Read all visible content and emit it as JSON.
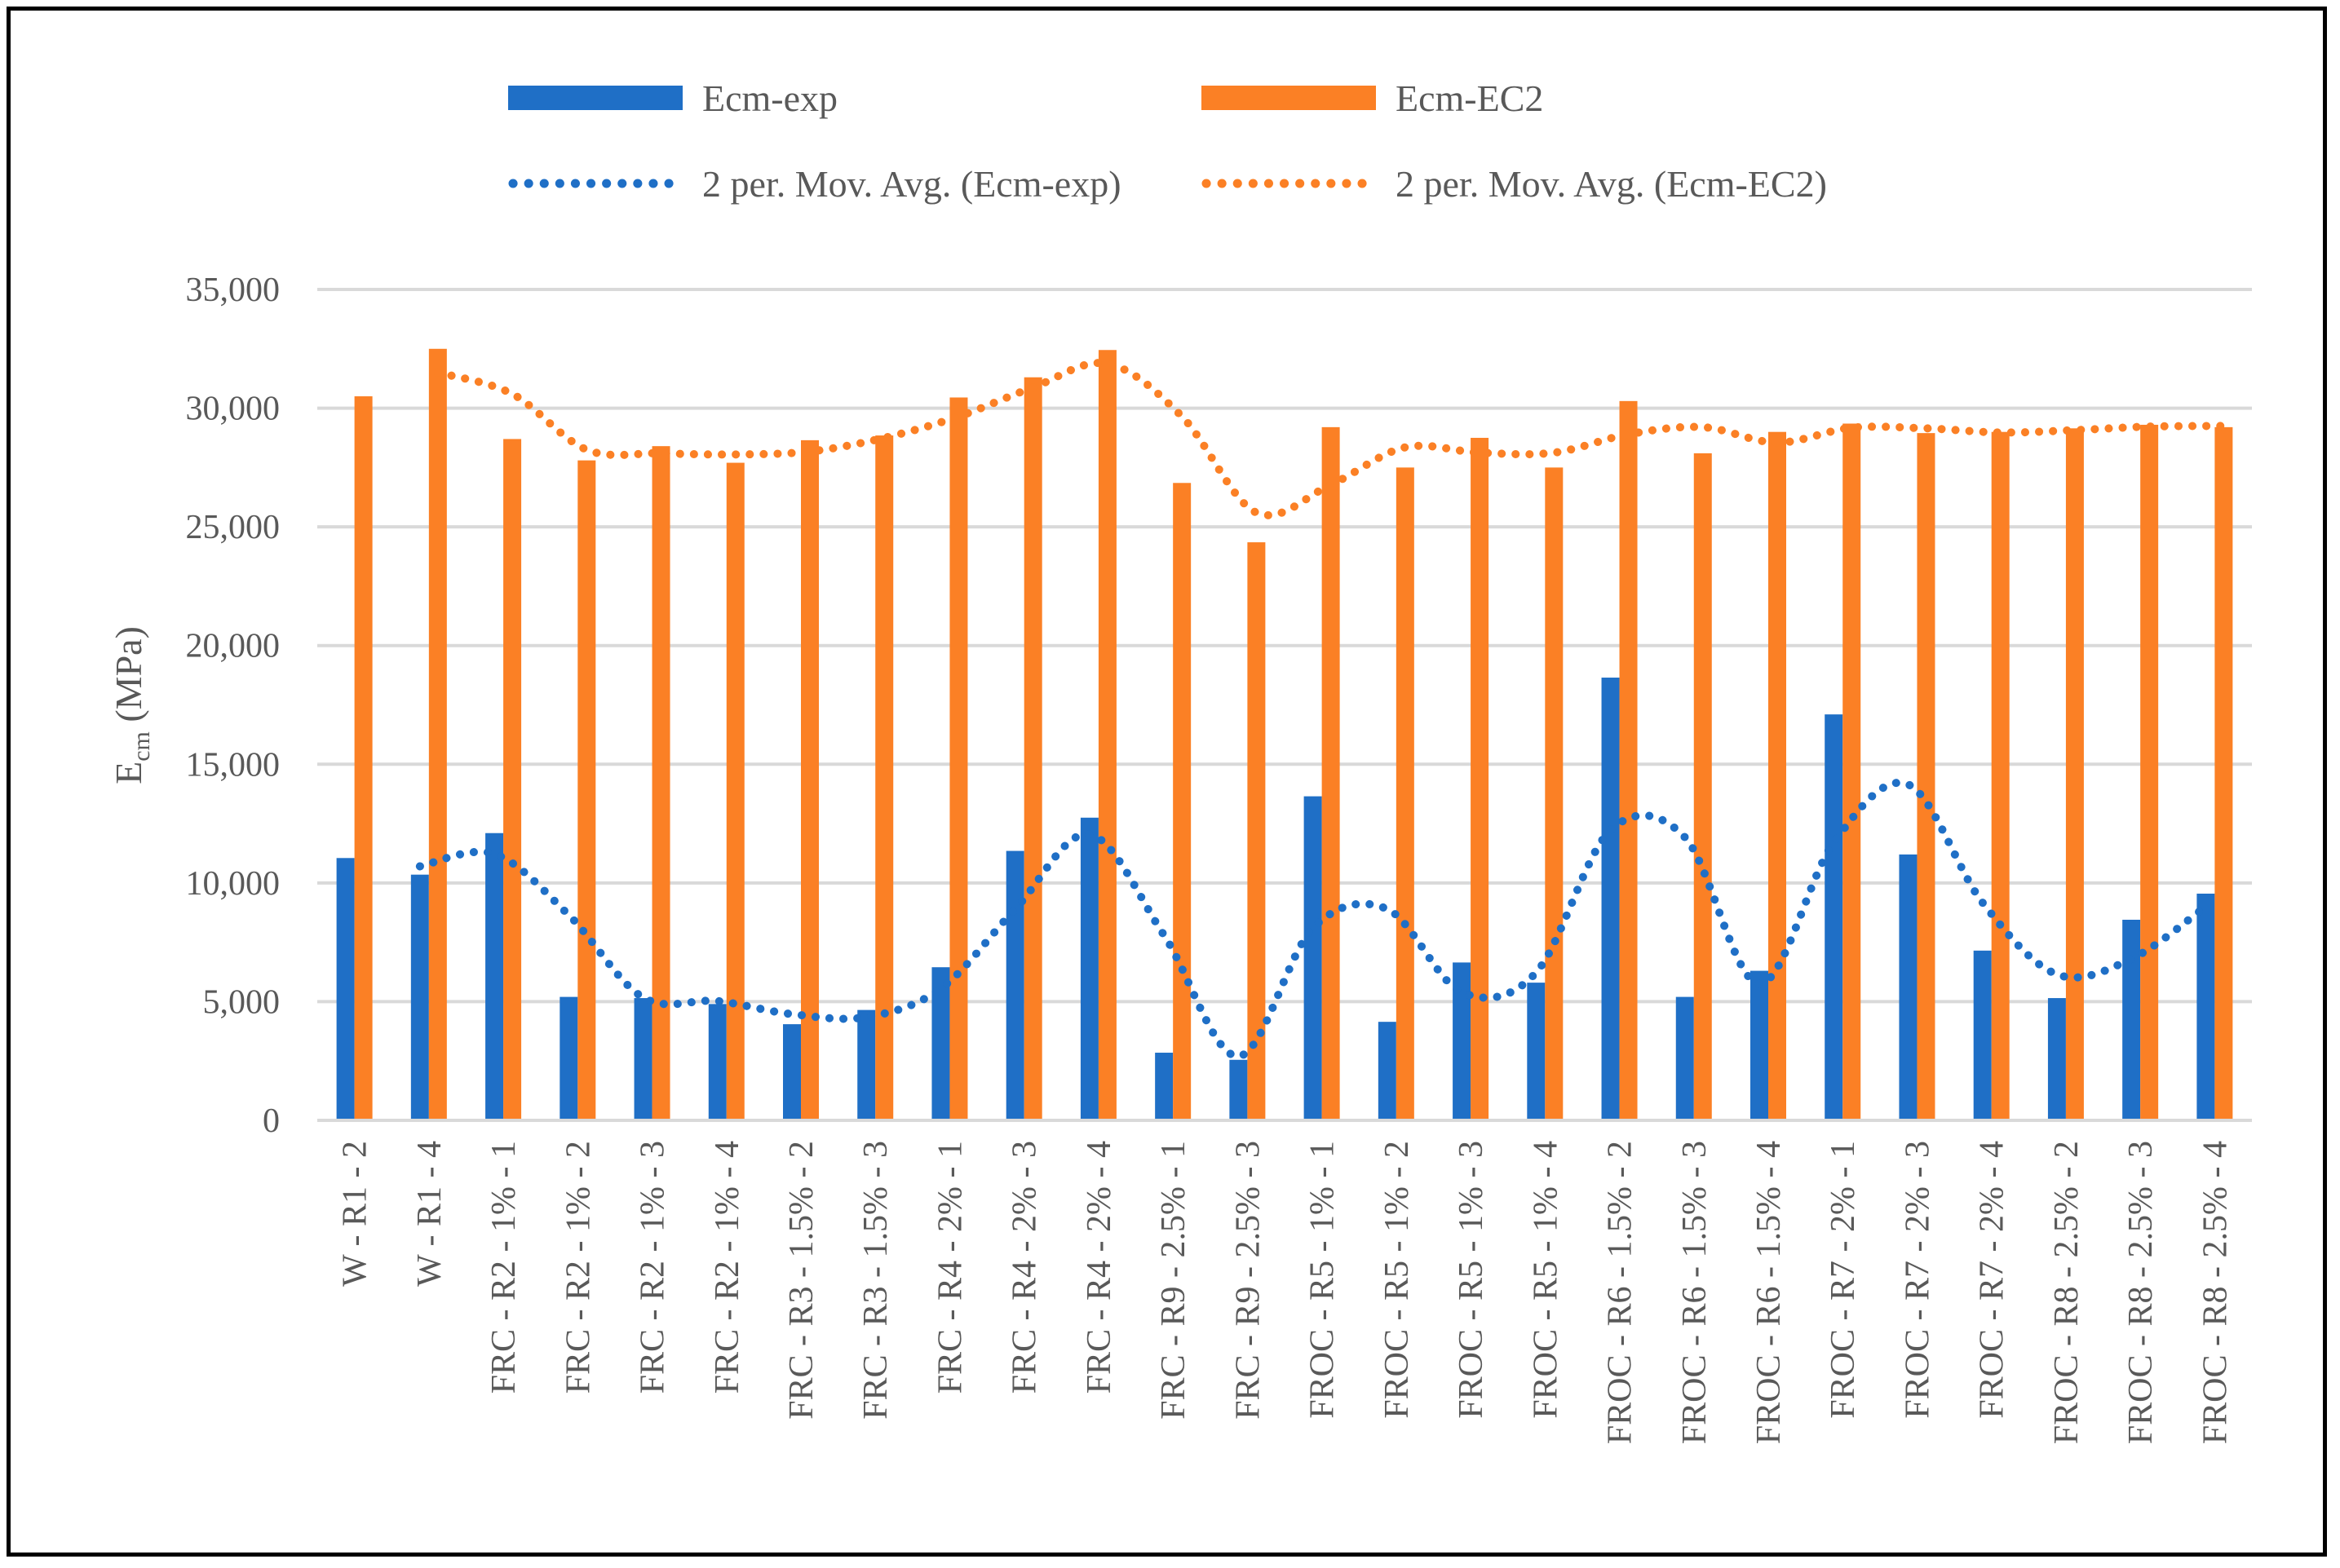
{
  "chart_data": {
    "type": "bar",
    "title": "",
    "xlabel": "",
    "ylabel_main": "E",
    "ylabel_sub": "cm",
    "ylabel_unit": " (MPa)",
    "ylim": [
      0,
      35000
    ],
    "yticks": [
      0,
      5000,
      10000,
      15000,
      20000,
      25000,
      30000,
      35000
    ],
    "ytick_labels": [
      "0",
      "5,000",
      "10,000",
      "15,000",
      "20,000",
      "25,000",
      "30,000",
      "35,000"
    ],
    "grid": true,
    "legend_position": "top",
    "categories": [
      "W - R1 - 2",
      "W - R1 - 4",
      "FRC - R2 - 1% - 1",
      "FRC - R2 - 1% - 2",
      "FRC - R2 - 1% - 3",
      "FRC - R2 - 1% - 4",
      "FRC - R3 - 1.5% - 2",
      "FRC - R3 - 1.5% - 3",
      "FRC - R4 - 2% - 1",
      "FRC - R4 - 2% - 3",
      "FRC - R4 - 2% - 4",
      "FRC - R9 - 2.5% - 1",
      "FRC - R9 - 2.5% - 3",
      "FROC - R5 - 1% - 1",
      "FROC - R5 - 1% - 2",
      "FROC - R5 - 1% - 3",
      "FROC - R5 - 1% - 4",
      "FROC - R6 - 1.5% - 2",
      "FROC - R6 - 1.5% - 3",
      "FROC - R6 - 1.5% - 4",
      "FROC - R7 - 2% - 1",
      "FROC - R7 - 2% - 3",
      "FROC - R7 - 2% - 4",
      "FROC - R8 - 2.5% - 2",
      "FROC - R8 - 2.5% - 3",
      "FROC - R8 - 2.5% - 4"
    ],
    "series": [
      {
        "name": "Ecm-exp",
        "color": "#1f6fc6",
        "values": [
          11050,
          10350,
          12100,
          5200,
          5150,
          4900,
          4050,
          4650,
          6450,
          11350,
          12750,
          2850,
          2550,
          13650,
          4150,
          6650,
          5800,
          18650,
          5200,
          6300,
          17100,
          11200,
          7150,
          5150,
          8450,
          9550
        ]
      },
      {
        "name": "Ecm-EC2",
        "color": "#fb8025",
        "values": [
          30500,
          32500,
          28700,
          27800,
          28400,
          27700,
          28650,
          28850,
          30450,
          31300,
          32450,
          26850,
          24350,
          29200,
          27500,
          28750,
          27500,
          30300,
          28100,
          29000,
          29350,
          28950,
          29000,
          29150,
          29300,
          29200
        ]
      }
    ],
    "trendlines": [
      {
        "name": "2 per. Mov. Avg. (Ecm-exp)",
        "series": "Ecm-exp",
        "period": 2,
        "color": "#1f6fc6"
      },
      {
        "name": "2 per. Mov. Avg. (Ecm-EC2)",
        "series": "Ecm-EC2",
        "period": 2,
        "color": "#fb8025"
      }
    ],
    "legend": [
      {
        "label": "Ecm-exp",
        "kind": "bar",
        "color": "#1f6fc6"
      },
      {
        "label": "Ecm-EC2",
        "kind": "bar",
        "color": "#fb8025"
      },
      {
        "label": "2 per. Mov. Avg. (Ecm-exp)",
        "kind": "dotted",
        "color": "#1f6fc6"
      },
      {
        "label": "2 per. Mov. Avg. (Ecm-EC2)",
        "kind": "dotted",
        "color": "#fb8025"
      }
    ],
    "colors": {
      "axis_text": "#595959",
      "grid": "#d9d9d9",
      "axis_line": "#d9d9d9"
    }
  }
}
